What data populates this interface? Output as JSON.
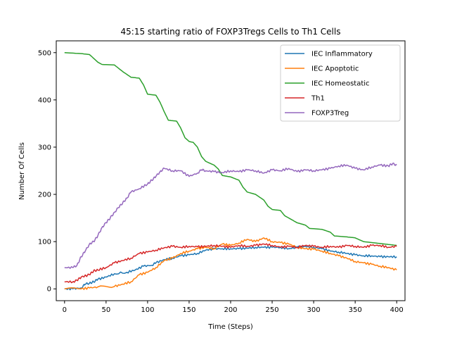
{
  "chart_data": {
    "type": "line",
    "title": "45:15 starting ratio of FOXP3Tregs Cells to Th1 Cells",
    "xlabel": "Time (Steps)",
    "ylabel": "Number Of Cells",
    "xlim": [
      -10,
      410
    ],
    "ylim": [
      -25,
      525
    ],
    "xticks": [
      0,
      50,
      100,
      150,
      200,
      250,
      300,
      350,
      400
    ],
    "yticks": [
      0,
      100,
      200,
      300,
      400,
      500
    ],
    "grid": false,
    "legend_position": "top-right",
    "series": [
      {
        "name": "IEC Inflammatory",
        "color": "#1f77b4",
        "points": [
          [
            0,
            0
          ],
          [
            10,
            0
          ],
          [
            20,
            2
          ],
          [
            25,
            10
          ],
          [
            30,
            12
          ],
          [
            35,
            15
          ],
          [
            40,
            20
          ],
          [
            50,
            25
          ],
          [
            60,
            32
          ],
          [
            75,
            35
          ],
          [
            85,
            40
          ],
          [
            95,
            48
          ],
          [
            105,
            50
          ],
          [
            110,
            55
          ],
          [
            120,
            62
          ],
          [
            130,
            65
          ],
          [
            140,
            70
          ],
          [
            150,
            72
          ],
          [
            160,
            75
          ],
          [
            170,
            82
          ],
          [
            180,
            85
          ],
          [
            190,
            85
          ],
          [
            200,
            85
          ],
          [
            210,
            85
          ],
          [
            220,
            86
          ],
          [
            230,
            88
          ],
          [
            240,
            88
          ],
          [
            250,
            88
          ],
          [
            260,
            88
          ],
          [
            270,
            85
          ],
          [
            280,
            88
          ],
          [
            290,
            90
          ],
          [
            300,
            88
          ],
          [
            310,
            85
          ],
          [
            320,
            80
          ],
          [
            330,
            78
          ],
          [
            340,
            75
          ],
          [
            350,
            72
          ],
          [
            360,
            70
          ],
          [
            370,
            70
          ],
          [
            380,
            68
          ],
          [
            390,
            68
          ],
          [
            400,
            68
          ]
        ]
      },
      {
        "name": "IEC Apoptotic",
        "color": "#ff7f0e",
        "points": [
          [
            0,
            0
          ],
          [
            20,
            0
          ],
          [
            30,
            2
          ],
          [
            40,
            4
          ],
          [
            60,
            5
          ],
          [
            70,
            10
          ],
          [
            80,
            15
          ],
          [
            90,
            30
          ],
          [
            100,
            35
          ],
          [
            110,
            45
          ],
          [
            120,
            60
          ],
          [
            130,
            65
          ],
          [
            140,
            75
          ],
          [
            150,
            80
          ],
          [
            160,
            85
          ],
          [
            170,
            88
          ],
          [
            180,
            85
          ],
          [
            190,
            95
          ],
          [
            200,
            92
          ],
          [
            210,
            97
          ],
          [
            220,
            105
          ],
          [
            230,
            100
          ],
          [
            240,
            108
          ],
          [
            250,
            100
          ],
          [
            260,
            98
          ],
          [
            270,
            95
          ],
          [
            280,
            88
          ],
          [
            290,
            85
          ],
          [
            300,
            84
          ],
          [
            310,
            80
          ],
          [
            320,
            75
          ],
          [
            330,
            70
          ],
          [
            340,
            65
          ],
          [
            350,
            58
          ],
          [
            360,
            55
          ],
          [
            370,
            52
          ],
          [
            380,
            48
          ],
          [
            390,
            45
          ],
          [
            400,
            40
          ]
        ]
      },
      {
        "name": "IEC Homeostatic",
        "color": "#2ca02c",
        "points": [
          [
            0,
            500
          ],
          [
            20,
            498
          ],
          [
            30,
            496
          ],
          [
            40,
            480
          ],
          [
            45,
            475
          ],
          [
            60,
            474
          ],
          [
            70,
            460
          ],
          [
            80,
            448
          ],
          [
            90,
            446
          ],
          [
            95,
            432
          ],
          [
            100,
            412
          ],
          [
            110,
            410
          ],
          [
            115,
            395
          ],
          [
            120,
            375
          ],
          [
            125,
            357
          ],
          [
            135,
            355
          ],
          [
            140,
            340
          ],
          [
            145,
            320
          ],
          [
            150,
            312
          ],
          [
            155,
            310
          ],
          [
            160,
            300
          ],
          [
            165,
            280
          ],
          [
            170,
            270
          ],
          [
            180,
            262
          ],
          [
            185,
            254
          ],
          [
            190,
            240
          ],
          [
            200,
            237
          ],
          [
            210,
            230
          ],
          [
            215,
            215
          ],
          [
            220,
            205
          ],
          [
            230,
            200
          ],
          [
            240,
            188
          ],
          [
            245,
            175
          ],
          [
            250,
            168
          ],
          [
            260,
            166
          ],
          [
            265,
            155
          ],
          [
            270,
            150
          ],
          [
            280,
            140
          ],
          [
            290,
            135
          ],
          [
            295,
            128
          ],
          [
            310,
            126
          ],
          [
            320,
            120
          ],
          [
            325,
            112
          ],
          [
            340,
            110
          ],
          [
            350,
            108
          ],
          [
            360,
            100
          ],
          [
            370,
            98
          ],
          [
            380,
            96
          ],
          [
            390,
            94
          ],
          [
            400,
            92
          ]
        ]
      },
      {
        "name": "Th1",
        "color": "#d62728",
        "points": [
          [
            0,
            15
          ],
          [
            10,
            15
          ],
          [
            15,
            18
          ],
          [
            20,
            25
          ],
          [
            30,
            30
          ],
          [
            35,
            38
          ],
          [
            40,
            40
          ],
          [
            50,
            45
          ],
          [
            60,
            55
          ],
          [
            70,
            60
          ],
          [
            80,
            65
          ],
          [
            90,
            75
          ],
          [
            100,
            78
          ],
          [
            110,
            82
          ],
          [
            120,
            87
          ],
          [
            130,
            90
          ],
          [
            140,
            88
          ],
          [
            150,
            90
          ],
          [
            160,
            89
          ],
          [
            170,
            90
          ],
          [
            180,
            92
          ],
          [
            190,
            90
          ],
          [
            200,
            88
          ],
          [
            210,
            92
          ],
          [
            220,
            90
          ],
          [
            230,
            92
          ],
          [
            240,
            95
          ],
          [
            250,
            92
          ],
          [
            260,
            88
          ],
          [
            270,
            90
          ],
          [
            280,
            88
          ],
          [
            290,
            92
          ],
          [
            300,
            90
          ],
          [
            310,
            88
          ],
          [
            320,
            90
          ],
          [
            330,
            88
          ],
          [
            340,
            92
          ],
          [
            350,
            90
          ],
          [
            360,
            88
          ],
          [
            370,
            92
          ],
          [
            380,
            92
          ],
          [
            390,
            88
          ],
          [
            400,
            90
          ]
        ]
      },
      {
        "name": "FOXP3Treg",
        "color": "#9467bd",
        "points": [
          [
            0,
            45
          ],
          [
            10,
            45
          ],
          [
            15,
            50
          ],
          [
            20,
            68
          ],
          [
            25,
            80
          ],
          [
            30,
            95
          ],
          [
            35,
            100
          ],
          [
            40,
            112
          ],
          [
            45,
            130
          ],
          [
            50,
            140
          ],
          [
            55,
            150
          ],
          [
            60,
            162
          ],
          [
            65,
            172
          ],
          [
            70,
            182
          ],
          [
            75,
            192
          ],
          [
            80,
            205
          ],
          [
            90,
            212
          ],
          [
            100,
            222
          ],
          [
            105,
            230
          ],
          [
            110,
            238
          ],
          [
            115,
            248
          ],
          [
            120,
            255
          ],
          [
            130,
            250
          ],
          [
            140,
            250
          ],
          [
            150,
            238
          ],
          [
            160,
            245
          ],
          [
            165,
            252
          ],
          [
            170,
            250
          ],
          [
            180,
            248
          ],
          [
            190,
            246
          ],
          [
            200,
            250
          ],
          [
            210,
            248
          ],
          [
            220,
            252
          ],
          [
            230,
            250
          ],
          [
            240,
            245
          ],
          [
            250,
            252
          ],
          [
            260,
            250
          ],
          [
            270,
            255
          ],
          [
            280,
            248
          ],
          [
            290,
            252
          ],
          [
            300,
            250
          ],
          [
            310,
            252
          ],
          [
            320,
            255
          ],
          [
            330,
            260
          ],
          [
            340,
            262
          ],
          [
            350,
            255
          ],
          [
            360,
            252
          ],
          [
            370,
            258
          ],
          [
            380,
            262
          ],
          [
            390,
            260
          ],
          [
            395,
            265
          ],
          [
            400,
            262
          ]
        ]
      }
    ]
  }
}
